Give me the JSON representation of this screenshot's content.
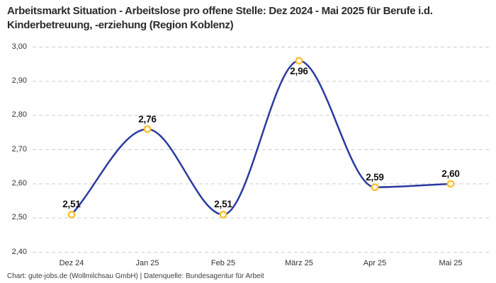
{
  "chart_data": {
    "type": "line",
    "title": "Arbeitsmarkt Situation - Arbeitslose pro offene Stelle: Dez 2024 - Mai 2025 für Berufe i.d. Kinderbetreuung, -erziehung (Region Koblenz)",
    "categories": [
      "Dez 24",
      "Jan 25",
      "Feb 25",
      "März 25",
      "Apr 25",
      "Mai 25"
    ],
    "values": [
      2.51,
      2.76,
      2.51,
      2.96,
      2.59,
      2.6
    ],
    "value_labels": [
      "2,51",
      "2,76",
      "2,51",
      "2,96",
      "2,59",
      "2,60"
    ],
    "value_label_positions": [
      "above",
      "above",
      "above",
      "below",
      "above",
      "above"
    ],
    "y_tick_values": [
      3.0,
      2.9,
      2.8,
      2.7,
      2.6,
      2.5,
      2.4
    ],
    "y_tick_labels": [
      "3,00",
      "2,90",
      "2,80",
      "2,70",
      "2,60",
      "2,50",
      "2,40"
    ],
    "ylim": [
      2.4,
      3.0
    ],
    "xlabel": "",
    "ylabel": "",
    "grid": "horizontal-dashed",
    "legend": "none",
    "interpolation": "monotone"
  },
  "footer": {
    "text": "Chart: gute-jobs.de (Wollmilchsau GmbH) | Datenquelle: Bundesagentur für Arbeit"
  },
  "colors": {
    "background": "#ffffff",
    "title": "#2b2b2b",
    "tick_label": "#333333",
    "grid_line": "#cccccc",
    "series_line": "#2a3aa0",
    "marker_ring": "#f9c233",
    "marker_fill": "#ffffff",
    "data_label": "#111111",
    "footer_text": "#3c3c3c"
  }
}
